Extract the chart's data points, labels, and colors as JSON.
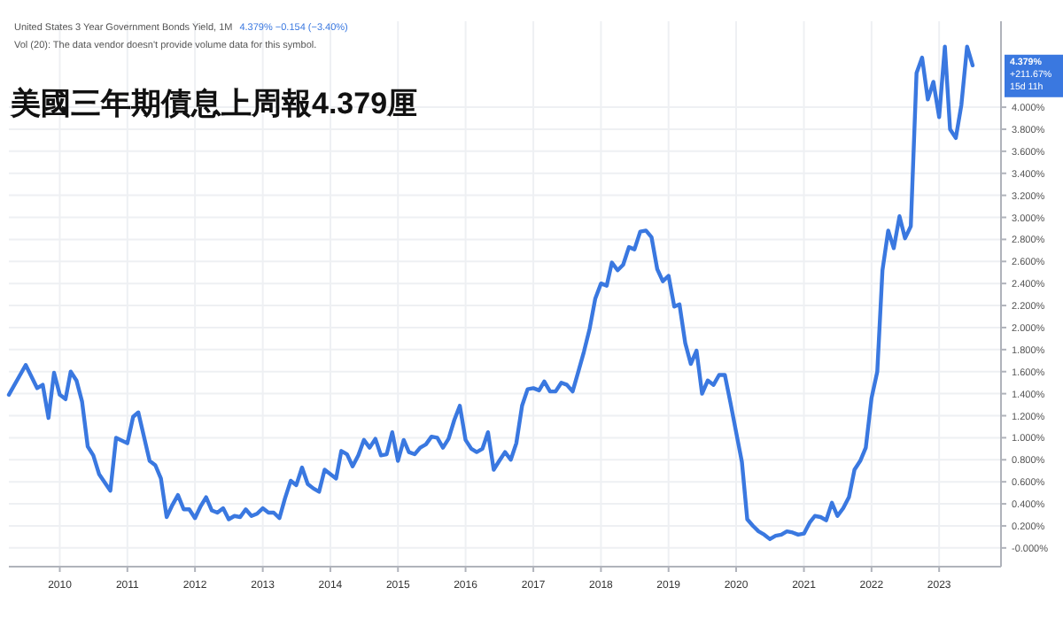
{
  "chart_data": {
    "type": "line",
    "title": "美國三年期債息上周報4.379厘",
    "subtitle": "United States 3 Year Government Bonds Yield, 1M",
    "annotations": [
      "4.379%  −0.154 (−3.40%)",
      "Vol (20): The data vendor doesn't provide volume data for this symbol.",
      "4.379%",
      "+211.67%",
      "15d 11h"
    ],
    "x": [
      "2009-04",
      "2009-07",
      "2009-09",
      "2009-10",
      "2009-11",
      "2009-12",
      "2010-01",
      "2010-02",
      "2010-03",
      "2010-04",
      "2010-05",
      "2010-06",
      "2010-07",
      "2010-08",
      "2010-10",
      "2010-11",
      "2011-01",
      "2011-02",
      "2011-03",
      "2011-05",
      "2011-06",
      "2011-07",
      "2011-08",
      "2011-09",
      "2011-10",
      "2011-11",
      "2011-12",
      "2012-01",
      "2012-02",
      "2012-03",
      "2012-04",
      "2012-05",
      "2012-06",
      "2012-07",
      "2012-08",
      "2012-09",
      "2012-10",
      "2012-11",
      "2012-12",
      "2013-01",
      "2013-02",
      "2013-03",
      "2013-04",
      "2013-05",
      "2013-06",
      "2013-07",
      "2013-08",
      "2013-09",
      "2013-10",
      "2013-11",
      "2013-12",
      "2014-01",
      "2014-02",
      "2014-03",
      "2014-04",
      "2014-05",
      "2014-06",
      "2014-07",
      "2014-08",
      "2014-09",
      "2014-10",
      "2014-11",
      "2014-12",
      "2015-01",
      "2015-02",
      "2015-03",
      "2015-04",
      "2015-05",
      "2015-06",
      "2015-07",
      "2015-08",
      "2015-09",
      "2015-10",
      "2015-11",
      "2015-12",
      "2016-01",
      "2016-02",
      "2016-03",
      "2016-04",
      "2016-05",
      "2016-06",
      "2016-07",
      "2016-08",
      "2016-09",
      "2016-10",
      "2016-11",
      "2016-12",
      "2017-01",
      "2017-02",
      "2017-03",
      "2017-04",
      "2017-05",
      "2017-06",
      "2017-07",
      "2017-08",
      "2017-09",
      "2017-10",
      "2017-11",
      "2017-12",
      "2018-01",
      "2018-02",
      "2018-03",
      "2018-04",
      "2018-05",
      "2018-06",
      "2018-07",
      "2018-08",
      "2018-09",
      "2018-10",
      "2018-11",
      "2018-12",
      "2019-01",
      "2019-02",
      "2019-03",
      "2019-04",
      "2019-05",
      "2019-06",
      "2019-07",
      "2019-08",
      "2019-09",
      "2019-10",
      "2019-11",
      "2019-12",
      "2020-02",
      "2020-03",
      "2020-04",
      "2020-05",
      "2020-06",
      "2020-07",
      "2020-08",
      "2020-09",
      "2020-10",
      "2020-11",
      "2020-12",
      "2021-01",
      "2021-02",
      "2021-03",
      "2021-04",
      "2021-05",
      "2021-06",
      "2021-07",
      "2021-08",
      "2021-09",
      "2021-10",
      "2021-11",
      "2021-12",
      "2022-01",
      "2022-02",
      "2022-03",
      "2022-04",
      "2022-05",
      "2022-06",
      "2022-07",
      "2022-08",
      "2022-09",
      "2022-10",
      "2022-11",
      "2022-12",
      "2023-01",
      "2023-02",
      "2023-03",
      "2023-04",
      "2023-05",
      "2023-06",
      "2023-07"
    ],
    "series": [
      {
        "color": "#3a78e0",
        "values": [
          1.39,
          1.66,
          1.45,
          1.48,
          1.18,
          1.59,
          1.39,
          1.35,
          1.6,
          1.52,
          1.33,
          0.92,
          0.84,
          0.67,
          0.52,
          1.0,
          0.95,
          1.19,
          1.23,
          0.79,
          0.75,
          0.63,
          0.28,
          0.39,
          0.48,
          0.35,
          0.35,
          0.27,
          0.38,
          0.46,
          0.34,
          0.32,
          0.36,
          0.26,
          0.29,
          0.28,
          0.35,
          0.29,
          0.31,
          0.36,
          0.32,
          0.32,
          0.27,
          0.45,
          0.61,
          0.57,
          0.73,
          0.58,
          0.54,
          0.51,
          0.71,
          0.67,
          0.63,
          0.88,
          0.85,
          0.74,
          0.84,
          0.98,
          0.91,
          0.99,
          0.84,
          0.85,
          1.05,
          0.79,
          0.98,
          0.87,
          0.85,
          0.91,
          0.94,
          1.01,
          1.0,
          0.91,
          0.99,
          1.16,
          1.29,
          0.98,
          0.9,
          0.87,
          0.9,
          1.05,
          0.71,
          0.79,
          0.87,
          0.8,
          0.95,
          1.29,
          1.44,
          1.45,
          1.43,
          1.51,
          1.42,
          1.42,
          1.5,
          1.48,
          1.42,
          1.6,
          1.78,
          1.99,
          2.26,
          2.4,
          2.38,
          2.59,
          2.52,
          2.57,
          2.73,
          2.71,
          2.87,
          2.88,
          2.82,
          2.53,
          2.42,
          2.47,
          2.19,
          2.21,
          1.86,
          1.67,
          1.79,
          1.4,
          1.52,
          1.48,
          1.57,
          1.57,
          1.32,
          0.78,
          0.26,
          0.2,
          0.15,
          0.12,
          0.08,
          0.11,
          0.12,
          0.15,
          0.14,
          0.12,
          0.13,
          0.23,
          0.29,
          0.28,
          0.25,
          0.41,
          0.29,
          0.36,
          0.46,
          0.71,
          0.79,
          0.91,
          1.36,
          1.6,
          2.52,
          2.88,
          2.72,
          3.01,
          2.81,
          2.92,
          4.31,
          4.45,
          4.07,
          4.23,
          3.91,
          4.55,
          3.8,
          3.72,
          4.02,
          4.55,
          4.38
        ]
      }
    ],
    "xlim": [
      "2009-04",
      "2023-12"
    ],
    "xticks": [
      {
        "value": "2010-01",
        "label": "2010"
      },
      {
        "value": "2011-01",
        "label": "2011"
      },
      {
        "value": "2012-01",
        "label": "2012"
      },
      {
        "value": "2013-01",
        "label": "2013"
      },
      {
        "value": "2014-01",
        "label": "2014"
      },
      {
        "value": "2015-01",
        "label": "2015"
      },
      {
        "value": "2016-01",
        "label": "2016"
      },
      {
        "value": "2017-01",
        "label": "2017"
      },
      {
        "value": "2018-01",
        "label": "2018"
      },
      {
        "value": "2019-01",
        "label": "2019"
      },
      {
        "value": "2020-01",
        "label": "2020"
      },
      {
        "value": "2021-01",
        "label": "2021"
      },
      {
        "value": "2022-01",
        "label": "2022"
      },
      {
        "value": "2023-01",
        "label": "2023"
      }
    ],
    "ylim": [
      -0.17,
      4.78
    ],
    "yticks": [
      {
        "value": 0,
        "label": "-0.000%"
      },
      {
        "value": 0.2,
        "label": "0.200%"
      },
      {
        "value": 0.4,
        "label": "0.400%"
      },
      {
        "value": 0.6,
        "label": "0.600%"
      },
      {
        "value": 0.8,
        "label": "0.800%"
      },
      {
        "value": 1.0,
        "label": "1.000%"
      },
      {
        "value": 1.2,
        "label": "1.200%"
      },
      {
        "value": 1.4,
        "label": "1.400%"
      },
      {
        "value": 1.6,
        "label": "1.600%"
      },
      {
        "value": 1.8,
        "label": "1.800%"
      },
      {
        "value": 2.0,
        "label": "2.000%"
      },
      {
        "value": 2.2,
        "label": "2.200%"
      },
      {
        "value": 2.4,
        "label": "2.400%"
      },
      {
        "value": 2.6,
        "label": "2.600%"
      },
      {
        "value": 2.8,
        "label": "2.800%"
      },
      {
        "value": 3.0,
        "label": "3.000%"
      },
      {
        "value": 3.2,
        "label": "3.200%"
      },
      {
        "value": 3.4,
        "label": "3.400%"
      },
      {
        "value": 3.6,
        "label": "3.600%"
      },
      {
        "value": 3.8,
        "label": "3.800%"
      },
      {
        "value": 4.0,
        "label": "4.000%"
      }
    ],
    "grid": true,
    "marker": "none",
    "line_style": "solid"
  }
}
